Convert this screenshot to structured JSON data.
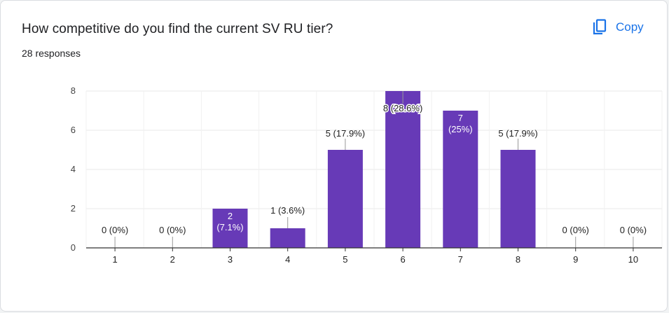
{
  "header": {
    "title": "How competitive do you find the current SV RU tier?",
    "responses": "28 responses",
    "copy_label": "Copy",
    "copy_icon": "copy-icon"
  },
  "colors": {
    "bar": "#673ab7",
    "accent": "#1a73e8",
    "grid": "#e8e8e8",
    "axis": "#333333",
    "text": "#202124"
  },
  "chart_data": {
    "type": "bar",
    "categories": [
      "1",
      "2",
      "3",
      "4",
      "5",
      "6",
      "7",
      "8",
      "9",
      "10"
    ],
    "values": [
      0,
      0,
      2,
      1,
      5,
      8,
      7,
      5,
      0,
      0
    ],
    "data_labels": [
      "0 (0%)",
      "0 (0%)",
      "2 (7.1%)",
      "1 (3.6%)",
      "5 (17.9%)",
      "8 (28.6%)",
      "7 (25%)",
      "5 (17.9%)",
      "0 (0%)",
      "0 (0%)"
    ],
    "y_ticks": [
      "0",
      "2",
      "4",
      "6",
      "8"
    ],
    "ylim": [
      0,
      8
    ],
    "xlabel": "",
    "ylabel": "",
    "grid": true
  }
}
